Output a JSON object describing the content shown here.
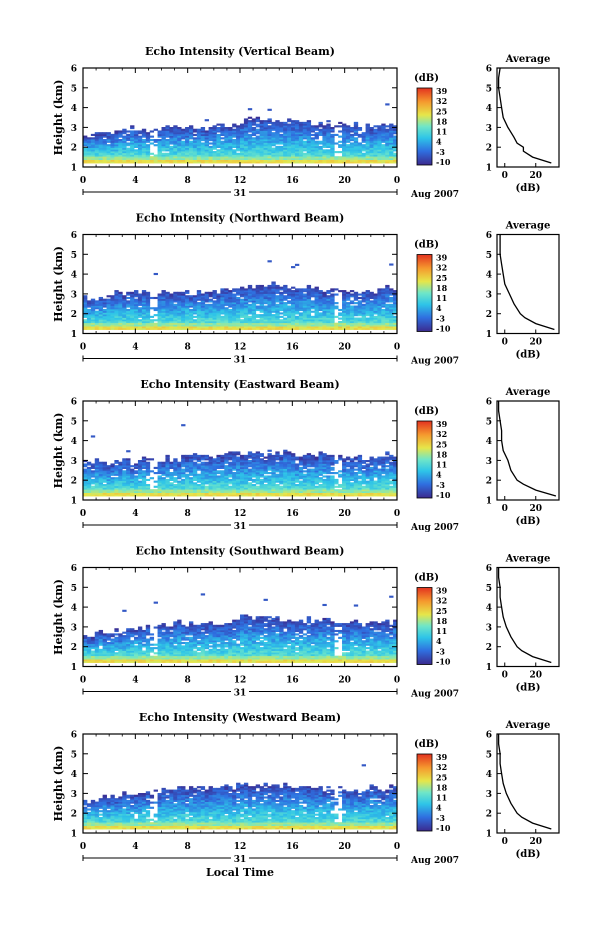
{
  "figure": {
    "date_label": "Aug 2007",
    "day_label": "31",
    "xlabel": "Local Time",
    "avg_title": "Average",
    "avg_xlabel": "(dB)",
    "cb_title": "(dB)",
    "ylabel": "Height (km)"
  },
  "chart_data": [
    {
      "type": "heatmap",
      "title": "Echo Intensity (Vertical Beam)",
      "xlabel": "",
      "ylabel": "Height (km)",
      "xlim": [
        0,
        24
      ],
      "ylim": [
        1,
        6
      ],
      "xticks": [
        "0",
        "4",
        "8",
        "12",
        "16",
        "20",
        "0"
      ],
      "yticks": [
        "1",
        "2",
        "3",
        "4",
        "5",
        "6"
      ],
      "colorbar": {
        "label": "(dB)",
        "ticks": [
          "39",
          "32",
          "25",
          "18",
          "11",
          "4",
          "-3",
          "-10"
        ],
        "range": [
          -10,
          39
        ]
      },
      "cloud_top_km": [
        2.6,
        2.7,
        2.7,
        2.9,
        2.8,
        2.8,
        3.0,
        3.1,
        3.0,
        3.0,
        3.1,
        3.2,
        3.3,
        3.3,
        3.4,
        3.3,
        3.3,
        3.2,
        3.2,
        3.1,
        3.1,
        3.0,
        3.1,
        3.2,
        3.1
      ],
      "average": {
        "xlabel": "(dB)",
        "xticks": [
          "0",
          "20"
        ],
        "xlim": [
          -5,
          35
        ],
        "height_km": [
          1.2,
          1.5,
          1.8,
          2.0,
          2.2,
          2.5,
          3.0,
          3.5,
          4.0,
          4.5,
          5.0,
          5.5,
          6.0
        ],
        "value_db": [
          30,
          18,
          12,
          12,
          8,
          6,
          2,
          -1,
          -2,
          -3,
          -4,
          -4,
          -3
        ]
      }
    },
    {
      "type": "heatmap",
      "title": "Echo Intensity (Northward Beam)",
      "xlabel": "",
      "ylabel": "Height (km)",
      "xlim": [
        0,
        24
      ],
      "ylim": [
        1,
        6
      ],
      "xticks": [
        "0",
        "4",
        "8",
        "12",
        "16",
        "20",
        "0"
      ],
      "yticks": [
        "1",
        "2",
        "3",
        "4",
        "5",
        "6"
      ],
      "colorbar": {
        "label": "(dB)",
        "ticks": [
          "39",
          "32",
          "25",
          "18",
          "11",
          "4",
          "-3",
          "-10"
        ],
        "range": [
          -10,
          39
        ]
      },
      "cloud_top_km": [
        2.8,
        2.9,
        3.0,
        3.0,
        3.1,
        3.0,
        3.0,
        3.2,
        3.1,
        3.0,
        3.1,
        3.2,
        3.4,
        3.4,
        3.4,
        3.3,
        3.2,
        3.3,
        3.1,
        3.2,
        3.2,
        3.0,
        3.1,
        3.3,
        3.2
      ],
      "average": {
        "xlabel": "(dB)",
        "xticks": [
          "0",
          "20"
        ],
        "xlim": [
          -5,
          35
        ],
        "height_km": [
          1.2,
          1.5,
          1.8,
          2.0,
          2.5,
          3.0,
          3.5,
          4.0,
          4.5,
          5.0,
          5.5,
          6.0
        ],
        "value_db": [
          32,
          20,
          13,
          10,
          6,
          3,
          0,
          -1,
          -2,
          -3,
          -3,
          -3
        ]
      }
    },
    {
      "type": "heatmap",
      "title": "Echo Intensity (Eastward Beam)",
      "xlabel": "",
      "ylabel": "Height (km)",
      "xlim": [
        0,
        24
      ],
      "ylim": [
        1,
        6
      ],
      "xticks": [
        "0",
        "4",
        "8",
        "12",
        "16",
        "20",
        "0"
      ],
      "yticks": [
        "1",
        "2",
        "3",
        "4",
        "5",
        "6"
      ],
      "colorbar": {
        "label": "(dB)",
        "ticks": [
          "39",
          "32",
          "25",
          "18",
          "11",
          "4",
          "-3",
          "-10"
        ],
        "range": [
          -10,
          39
        ]
      },
      "cloud_top_km": [
        2.8,
        2.9,
        2.9,
        2.9,
        3.0,
        3.0,
        3.1,
        3.1,
        3.2,
        3.2,
        3.2,
        3.3,
        3.3,
        3.3,
        3.4,
        3.4,
        3.3,
        3.2,
        3.3,
        3.2,
        3.1,
        3.1,
        3.2,
        3.3,
        3.3
      ],
      "average": {
        "xlabel": "(dB)",
        "xticks": [
          "0",
          "20"
        ],
        "xlim": [
          -5,
          35
        ],
        "height_km": [
          1.2,
          1.5,
          1.8,
          2.0,
          2.5,
          3.0,
          3.5,
          4.0,
          4.5,
          5.0,
          5.5,
          6.0
        ],
        "value_db": [
          33,
          20,
          12,
          8,
          4,
          2,
          -1,
          -2,
          -2,
          -3,
          -4,
          -4
        ]
      }
    },
    {
      "type": "heatmap",
      "title": "Echo Intensity (Southward Beam)",
      "xlabel": "",
      "ylabel": "Height (km)",
      "xlim": [
        0,
        24
      ],
      "ylim": [
        1,
        6
      ],
      "xticks": [
        "0",
        "4",
        "8",
        "12",
        "16",
        "20",
        "0"
      ],
      "yticks": [
        "1",
        "2",
        "3",
        "4",
        "5",
        "6"
      ],
      "colorbar": {
        "label": "(dB)",
        "ticks": [
          "39",
          "32",
          "25",
          "18",
          "11",
          "4",
          "-3",
          "-10"
        ],
        "range": [
          -10,
          39
        ]
      },
      "cloud_top_km": [
        2.6,
        2.7,
        2.8,
        2.8,
        2.9,
        3.0,
        3.1,
        3.2,
        3.1,
        3.2,
        3.2,
        3.3,
        3.4,
        3.4,
        3.5,
        3.4,
        3.4,
        3.3,
        3.3,
        3.2,
        3.2,
        3.1,
        3.1,
        3.2,
        3.2
      ],
      "average": {
        "xlabel": "(dB)",
        "xticks": [
          "0",
          "20"
        ],
        "xlim": [
          -5,
          35
        ],
        "height_km": [
          1.2,
          1.5,
          1.8,
          2.0,
          2.5,
          3.0,
          3.5,
          4.0,
          4.5,
          5.0,
          5.5,
          6.0
        ],
        "value_db": [
          30,
          18,
          11,
          8,
          4,
          1,
          -1,
          -2,
          -3,
          -3,
          -4,
          -4
        ]
      }
    },
    {
      "type": "heatmap",
      "title": "Echo Intensity (Westward Beam)",
      "xlabel": "Local Time",
      "ylabel": "Height (km)",
      "xlim": [
        0,
        24
      ],
      "ylim": [
        1,
        6
      ],
      "xticks": [
        "0",
        "4",
        "8",
        "12",
        "16",
        "20",
        "0"
      ],
      "yticks": [
        "1",
        "2",
        "3",
        "4",
        "5",
        "6"
      ],
      "colorbar": {
        "label": "(dB)",
        "ticks": [
          "39",
          "32",
          "25",
          "18",
          "11",
          "4",
          "-3",
          "-10"
        ],
        "range": [
          -10,
          39
        ]
      },
      "cloud_top_km": [
        2.6,
        2.7,
        2.8,
        2.9,
        3.0,
        3.0,
        3.1,
        3.2,
        3.3,
        3.2,
        3.3,
        3.3,
        3.4,
        3.4,
        3.4,
        3.4,
        3.3,
        3.3,
        3.2,
        3.2,
        3.2,
        3.1,
        3.2,
        3.3,
        3.2
      ],
      "average": {
        "xlabel": "(dB)",
        "xticks": [
          "0",
          "20"
        ],
        "xlim": [
          -5,
          35
        ],
        "height_km": [
          1.2,
          1.5,
          1.8,
          2.0,
          2.5,
          3.0,
          3.5,
          4.0,
          4.5,
          5.0,
          5.5,
          6.0
        ],
        "value_db": [
          30,
          18,
          11,
          8,
          4,
          1,
          -1,
          -2,
          -3,
          -3,
          -4,
          -4
        ]
      }
    }
  ]
}
